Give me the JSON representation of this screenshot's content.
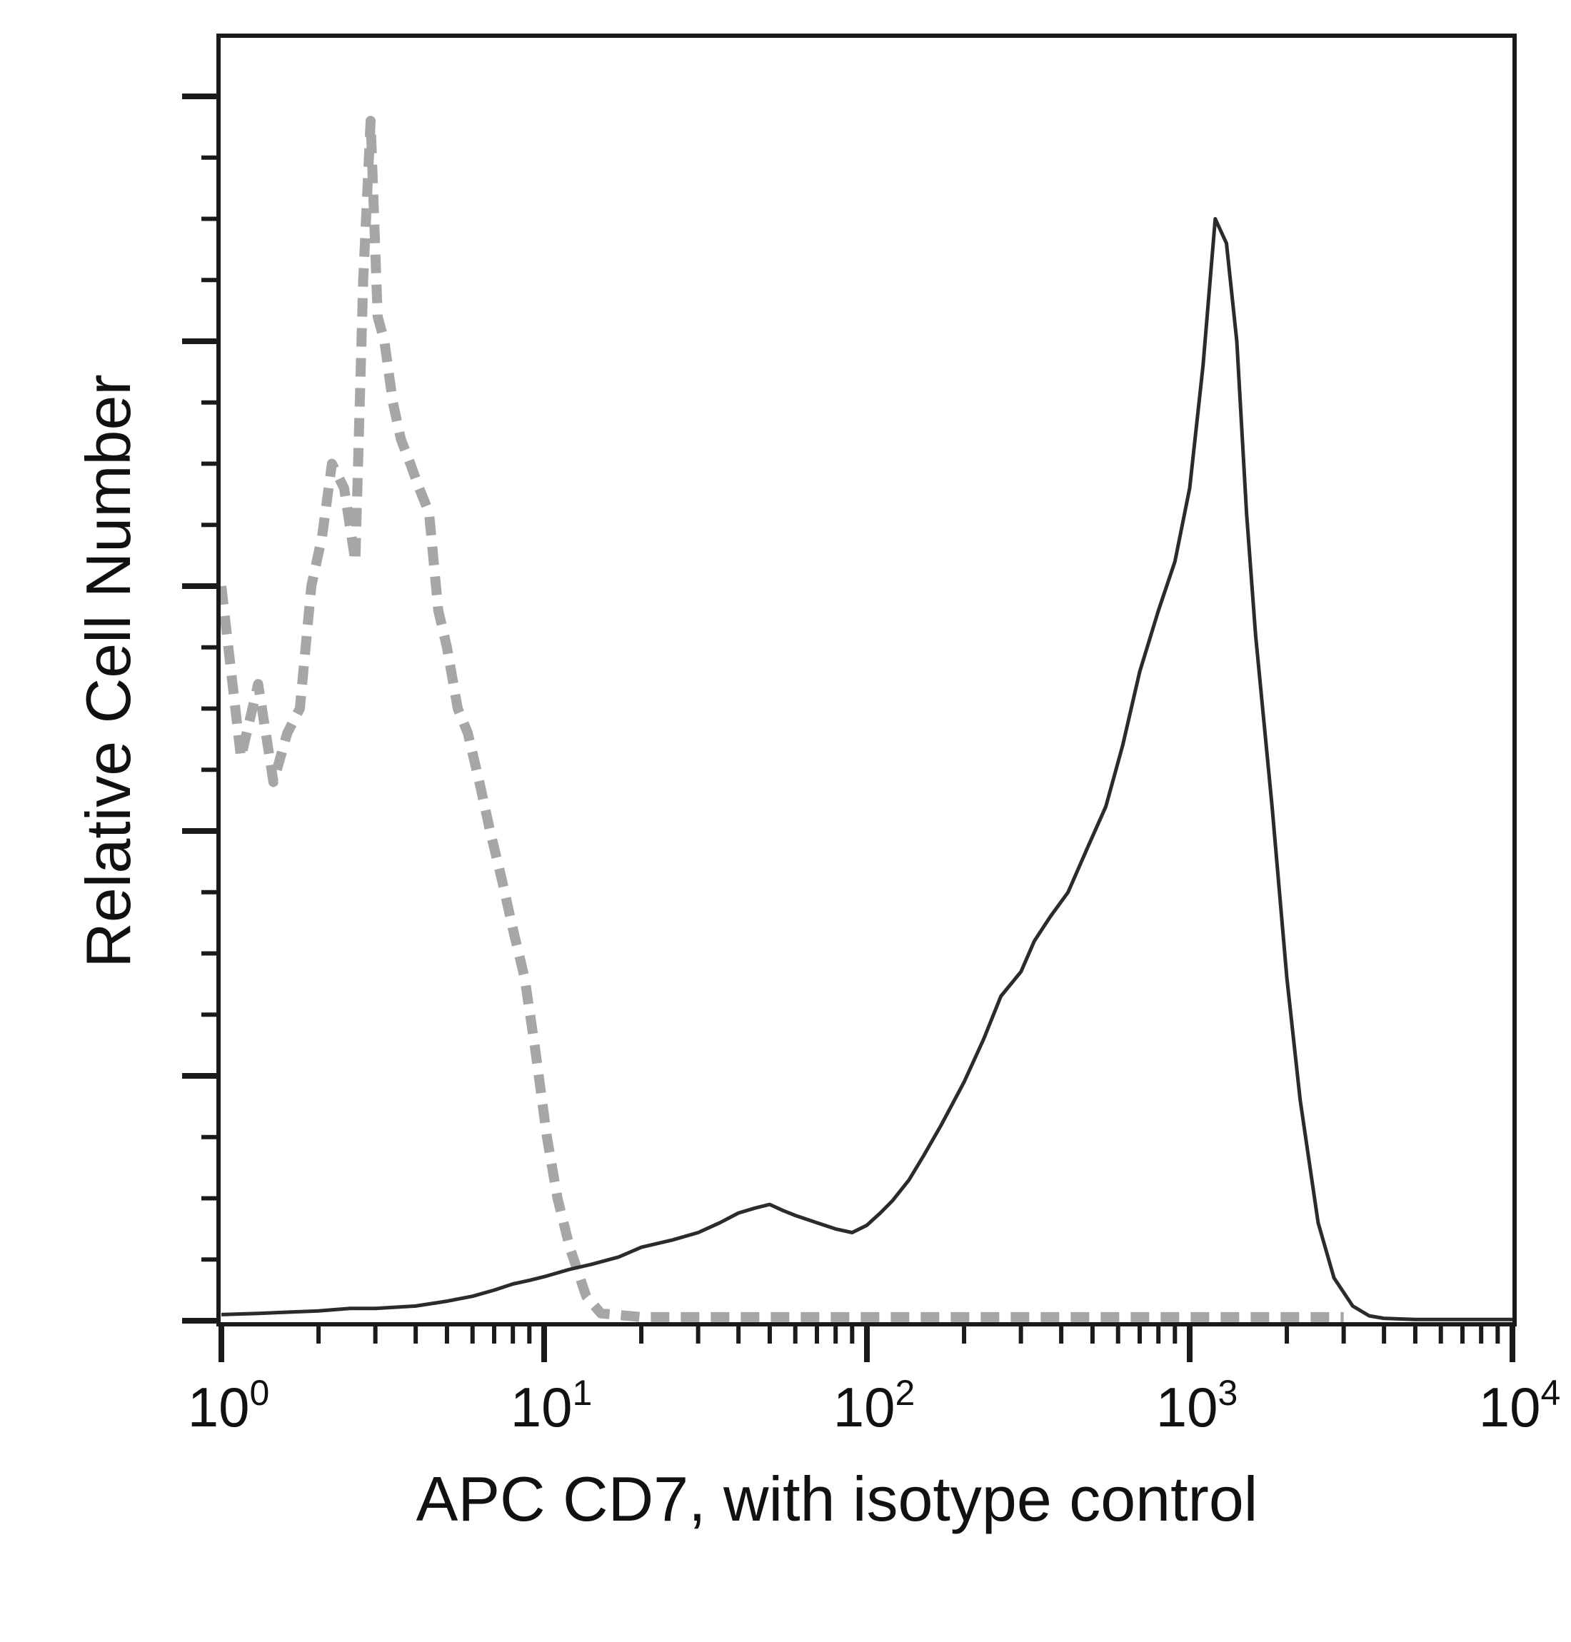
{
  "chart_data": {
    "type": "line",
    "title": "",
    "xlabel": "APC CD7, with isotype control",
    "ylabel": "Relative Cell Number",
    "x_scale": "log",
    "xlim": [
      1,
      10000
    ],
    "ylim": [
      0,
      100
    ],
    "grid": false,
    "legend": "none",
    "x_ticks": [
      {
        "base": "10",
        "exp": "0"
      },
      {
        "base": "10",
        "exp": "1"
      },
      {
        "base": "10",
        "exp": "2"
      },
      {
        "base": "10",
        "exp": "3"
      },
      {
        "base": "10",
        "exp": "4"
      }
    ],
    "series": [
      {
        "style": "dashed",
        "color": "#a6a6a6",
        "x": [
          1.0,
          1.15,
          1.3,
          1.45,
          1.6,
          1.75,
          1.9,
          2.05,
          2.2,
          2.4,
          2.6,
          2.75,
          2.9,
          3.05,
          3.2,
          3.4,
          3.6,
          3.85,
          4.1,
          4.4,
          4.7,
          5.0,
          5.4,
          5.8,
          6.3,
          6.8,
          7.4,
          8.0,
          8.7,
          9.4,
          10.2,
          11.0,
          12.0,
          13.5,
          15.0,
          20.0,
          30.0,
          50.0,
          100.0,
          300.0,
          1000.0,
          2000.0,
          3000.0
        ],
        "y": [
          60,
          46,
          52,
          44,
          48,
          50,
          60,
          64,
          70,
          68,
          62,
          85,
          98,
          82,
          80,
          75,
          72,
          70,
          68,
          66,
          58,
          55,
          50,
          48,
          44,
          40,
          36,
          32,
          28,
          22,
          15,
          10,
          6,
          2,
          0.6,
          0.3,
          0.3,
          0.3,
          0.3,
          0.3,
          0.3,
          0.3,
          0.3
        ]
      },
      {
        "style": "solid",
        "color": "#2b2b2b",
        "x": [
          1.0,
          1.3,
          1.6,
          2.0,
          2.5,
          3.0,
          4.0,
          5.0,
          6.0,
          7.0,
          8.0,
          9.0,
          10.0,
          12.0,
          14.0,
          17.0,
          20.0,
          25.0,
          30.0,
          35.0,
          40.0,
          45.0,
          50.0,
          55.0,
          60.0,
          70.0,
          80.0,
          90.0,
          100.0,
          110.0,
          120.0,
          135.0,
          150.0,
          170.0,
          200.0,
          230.0,
          260.0,
          300.0,
          330.0,
          370.0,
          420.0,
          480.0,
          550.0,
          620.0,
          700.0,
          800.0,
          900.0,
          1000.0,
          1100.0,
          1200.0,
          1300.0,
          1400.0,
          1500.0,
          1600.0,
          1800.0,
          2000.0,
          2200.0,
          2500.0,
          2800.0,
          3200.0,
          3600.0,
          4000.0,
          5000.0,
          10000.0
        ],
        "y": [
          0.5,
          0.6,
          0.7,
          0.8,
          1.0,
          1.0,
          1.2,
          1.6,
          2.0,
          2.5,
          3.0,
          3.3,
          3.6,
          4.2,
          4.6,
          5.2,
          6.0,
          6.6,
          7.2,
          8.0,
          8.8,
          9.2,
          9.5,
          9.0,
          8.6,
          8.0,
          7.5,
          7.2,
          7.8,
          8.8,
          9.8,
          11.5,
          13.5,
          16.0,
          19.5,
          23.0,
          26.5,
          28.5,
          31.0,
          33.0,
          35.0,
          38.5,
          42.0,
          47.0,
          53.0,
          58.0,
          62.0,
          68.0,
          78.0,
          90.0,
          88.0,
          80.0,
          66.0,
          56.0,
          42.0,
          28.0,
          18.0,
          8.0,
          3.5,
          1.2,
          0.4,
          0.2,
          0.1,
          0.1
        ]
      }
    ]
  }
}
